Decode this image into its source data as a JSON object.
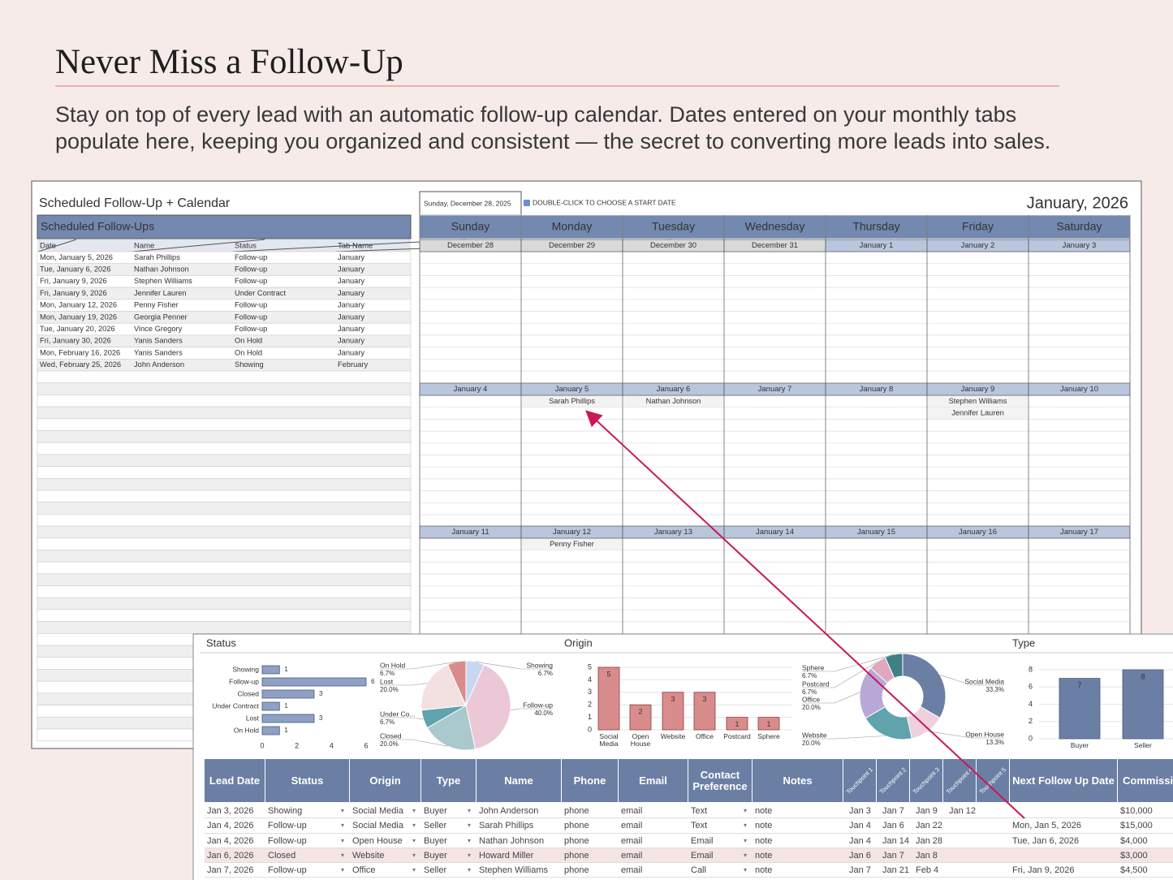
{
  "header": {
    "title": "Never Miss a Follow-Up",
    "subtitle": "Stay on top of every lead with an automatic follow-up calendar. Dates entered on your monthly tabs populate here, keeping you organized and consistent — the secret to converting more leads into sales."
  },
  "calendar_panel": {
    "title": "Scheduled Follow-Up + Calendar",
    "list_title": "Scheduled Follow-Ups",
    "list_columns": [
      "Date",
      "Name",
      "Status",
      "Tab Name"
    ],
    "list_rows": [
      [
        "Mon, January 5, 2026",
        "Sarah Phillips",
        "Follow-up",
        "January"
      ],
      [
        "Tue, January 6, 2026",
        "Nathan Johnson",
        "Follow-up",
        "January"
      ],
      [
        "Fri, January 9, 2026",
        "Stephen Williams",
        "Follow-up",
        "January"
      ],
      [
        "Fri, January 9, 2026",
        "Jennifer Lauren",
        "Under Contract",
        "January"
      ],
      [
        "Mon, January 12, 2026",
        "Penny Fisher",
        "Follow-up",
        "January"
      ],
      [
        "Mon, January 19, 2026",
        "Georgia Penner",
        "Follow-up",
        "January"
      ],
      [
        "Tue, January 20, 2026",
        "Vince Gregory",
        "Follow-up",
        "January"
      ],
      [
        "Fri, January 30, 2026",
        "Yanis Sanders",
        "On Hold",
        "January"
      ],
      [
        "Mon, February 16, 2026",
        "Yanis Sanders",
        "On Hold",
        "January"
      ],
      [
        "Wed, February 25, 2026",
        "John Anderson",
        "Showing",
        "February"
      ]
    ],
    "start_date": "Sunday, December 28, 2025",
    "hint": "DOUBLE-CLICK TO CHOOSE A START DATE",
    "month": "January, 2026",
    "weekdays": [
      "Sunday",
      "Monday",
      "Tuesday",
      "Wednesday",
      "Thursday",
      "Friday",
      "Saturday"
    ],
    "weeks": [
      {
        "dates": [
          "December 28",
          "December 29",
          "December 30",
          "December 31",
          "January 1",
          "January 2",
          "January 3"
        ],
        "events": [
          [],
          [],
          [],
          [],
          [],
          [],
          []
        ]
      },
      {
        "dates": [
          "January 4",
          "January 5",
          "January 6",
          "January 7",
          "January 8",
          "January 9",
          "January 10"
        ],
        "events": [
          [],
          [
            "Sarah Phillips"
          ],
          [
            "Nathan Johnson"
          ],
          [],
          [],
          [
            "Stephen Williams",
            "Jennifer Lauren"
          ],
          []
        ]
      },
      {
        "dates": [
          "January 11",
          "January 12",
          "January 13",
          "January 14",
          "January 15",
          "January 16",
          "January 17"
        ],
        "events": [
          [],
          [
            "Penny Fisher"
          ],
          [],
          [],
          [],
          [],
          []
        ]
      }
    ]
  },
  "dashboard": {
    "status_title": "Status",
    "origin_title": "Origin",
    "type_title": "Type",
    "status_bar": {
      "categories": [
        "Showing",
        "Follow-up",
        "Closed",
        "Under Contract",
        "Lost",
        "On Hold"
      ],
      "values": [
        1,
        6,
        3,
        1,
        3,
        1
      ],
      "xlim": [
        0,
        6
      ],
      "xticks": [
        0,
        2,
        4,
        6
      ],
      "color": "#8ea0c4"
    },
    "status_pie": {
      "categories": [
        "Showing",
        "Follow-up",
        "Closed",
        "Under Co...",
        "Lost",
        "On Hold"
      ],
      "values": [
        6.7,
        40,
        20,
        6.7,
        20,
        6.7
      ],
      "value_labels": [
        "6.7%",
        "40.0%",
        "20.0%",
        "6.7%",
        "20.0%",
        "6.7%"
      ],
      "colors": [
        "#c7d8f0",
        "#ecc7d6",
        "#a9c9cc",
        "#5fa3ad",
        "#f3e0e0",
        "#d98c8c"
      ]
    },
    "origin_bar": {
      "categories": [
        "Social Media",
        "Open House",
        "Website",
        "Office",
        "Postcard",
        "Sphere"
      ],
      "values": [
        5,
        2,
        3,
        3,
        1,
        1
      ],
      "ylim": [
        0,
        5
      ],
      "yticks": [
        0,
        1,
        2,
        3,
        4,
        5
      ],
      "color": "#d98c8c"
    },
    "origin_donut": {
      "categories": [
        "Social Media",
        "Open House",
        "Website",
        "Office",
        "Postcard",
        "Sphere"
      ],
      "values": [
        33.3,
        13.3,
        20,
        20,
        6.7,
        6.7
      ],
      "value_labels": [
        "33.3%",
        "13.3%",
        "20.0%",
        "20.0%",
        "6.7%",
        "6.7%"
      ],
      "colors": [
        "#6a7fa3",
        "#efd0dd",
        "#5fa3ad",
        "#b7a8d8",
        "#e0a8c0",
        "#3f7f86"
      ]
    },
    "type_bar": {
      "categories": [
        "Buyer",
        "Seller"
      ],
      "values": [
        7,
        8
      ],
      "ylim": [
        0,
        8
      ],
      "yticks": [
        0,
        2,
        4,
        6,
        8
      ],
      "color": "#6a7fa3"
    },
    "leads_table": {
      "columns": [
        "Lead Date",
        "Status",
        "Origin",
        "Type",
        "Name",
        "Phone",
        "Email",
        "Contact Preference",
        "Notes",
        "Touchpoint 1",
        "Touchpoint 2",
        "Touchpoint 3",
        "Touchpoint 4",
        "Touchpoint 5",
        "Next Follow Up Date",
        "Commission"
      ],
      "rows": [
        [
          "Jan 3, 2026",
          "Showing",
          "Social Media",
          "Buyer",
          "John Anderson",
          "phone",
          "email",
          "Text",
          "note",
          "Jan 3",
          "Jan 7",
          "Jan 9",
          "Jan 12",
          null,
          null,
          "$10,000"
        ],
        [
          "Jan 4, 2026",
          "Follow-up",
          "Social Media",
          "Seller",
          "Sarah Phillips",
          "phone",
          "email",
          "Text",
          "note",
          "Jan 4",
          "Jan 6",
          "Jan 22",
          null,
          null,
          "Mon, Jan 5, 2026",
          "$15,000"
        ],
        [
          "Jan 4, 2026",
          "Follow-up",
          "Open House",
          "Buyer",
          "Nathan Johnson",
          "phone",
          "email",
          "Email",
          "note",
          "Jan 4",
          "Jan 14",
          "Jan 28",
          null,
          null,
          "Tue, Jan 6, 2026",
          "$4,000"
        ],
        [
          "Jan 6, 2026",
          "Closed",
          "Website",
          "Buyer",
          "Howard Miller",
          "phone",
          "email",
          "Email",
          "note",
          "Jan 6",
          "Jan 7",
          "Jan 8",
          null,
          null,
          null,
          "$3,000"
        ],
        [
          "Jan 7, 2026",
          "Follow-up",
          "Office",
          "Seller",
          "Stephen Williams",
          "phone",
          "email",
          "Call",
          "note",
          "Jan 7",
          "Jan 21",
          "Feb 4",
          null,
          null,
          "Fri, Jan 9, 2026",
          "$4,500"
        ]
      ]
    }
  }
}
